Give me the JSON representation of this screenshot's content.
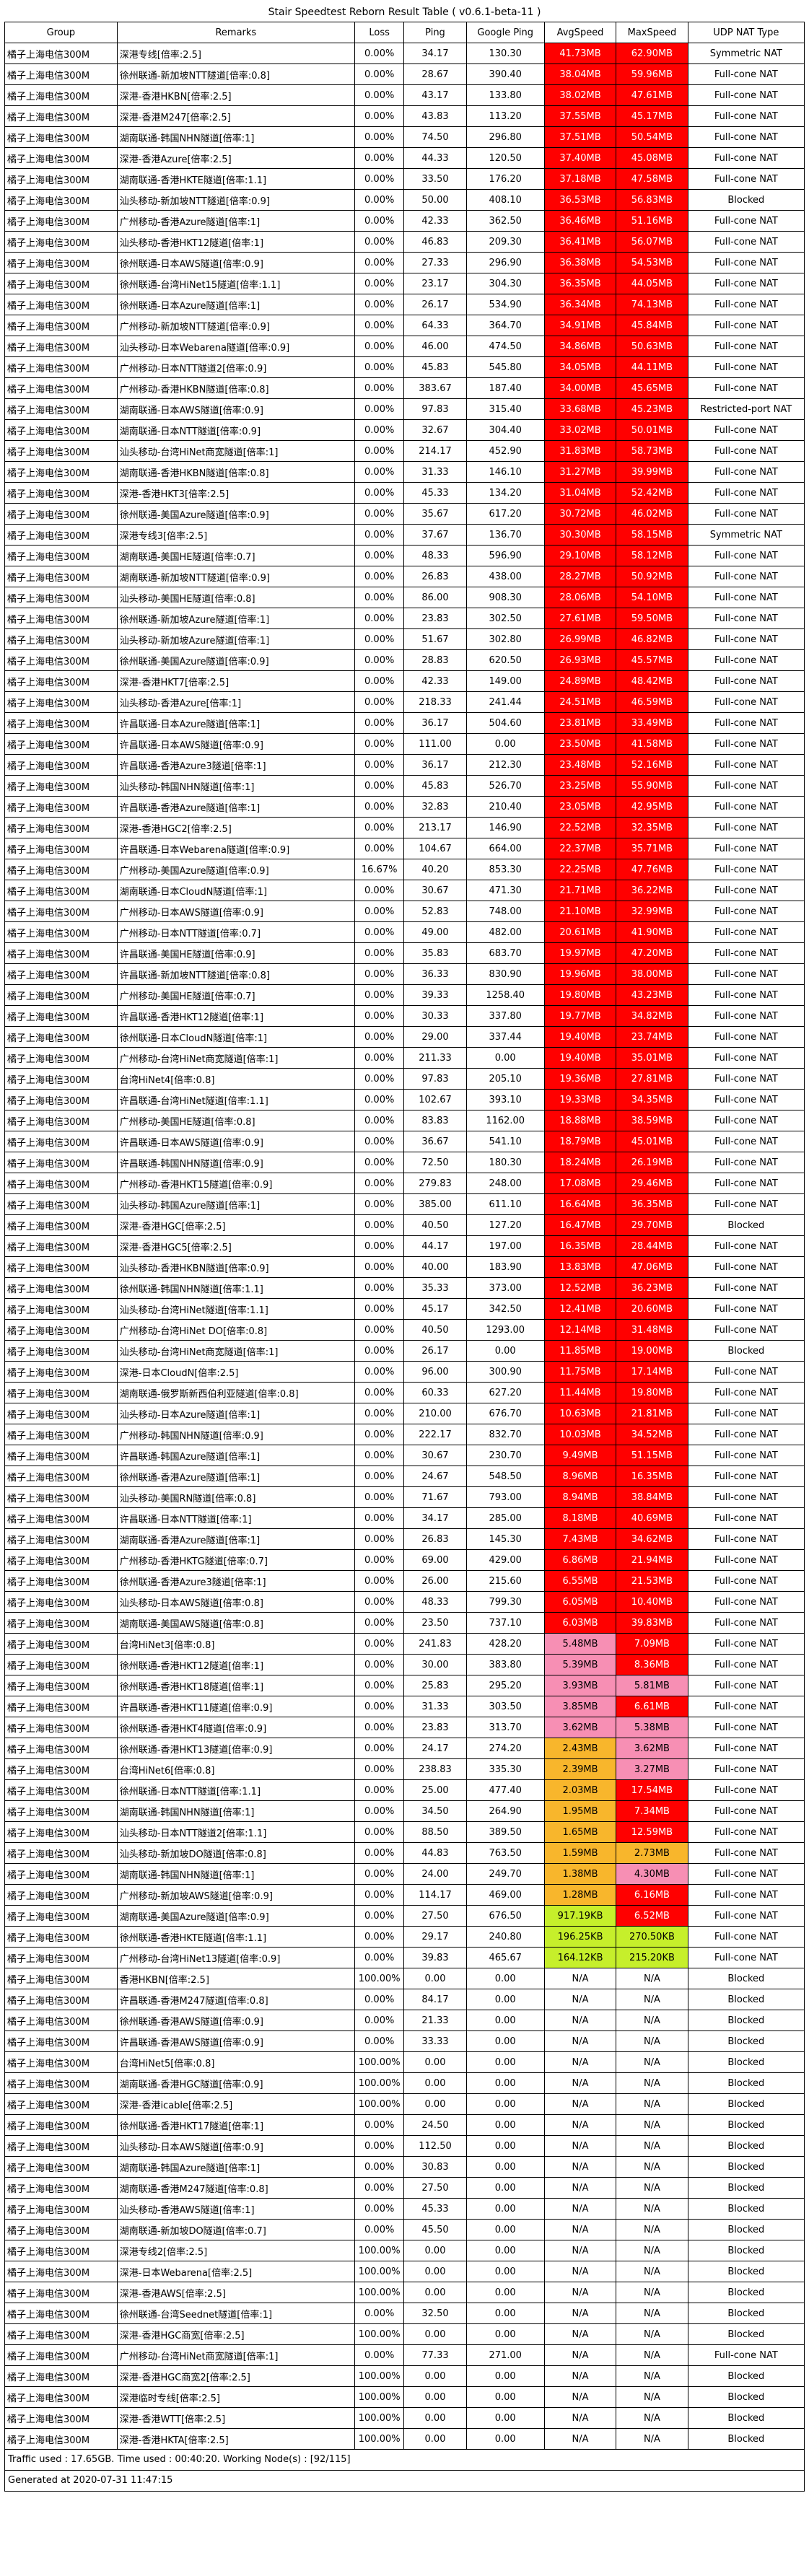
{
  "title": "Stair Speedtest Reborn Result Table ( v0.6.1-beta-11 )",
  "headers": [
    "Group",
    "Remarks",
    "Loss",
    "Ping",
    "Google Ping",
    "AvgSpeed",
    "MaxSpeed",
    "UDP NAT Type"
  ],
  "rows": [
    [
      "橘子上海电信300M",
      "深港专线[倍率:2.5]",
      "0.00%",
      "34.17",
      "130.30",
      "41.73MB",
      "62.90MB",
      "Symmetric NAT"
    ],
    [
      "橘子上海电信300M",
      "徐州联通-新加坡NTT隧道[倍率:0.8]",
      "0.00%",
      "28.67",
      "390.40",
      "38.04MB",
      "59.96MB",
      "Full-cone NAT"
    ],
    [
      "橘子上海电信300M",
      "深港-香港HKBN[倍率:2.5]",
      "0.00%",
      "43.17",
      "133.80",
      "38.02MB",
      "47.61MB",
      "Full-cone NAT"
    ],
    [
      "橘子上海电信300M",
      "深港-香港M247[倍率:2.5]",
      "0.00%",
      "43.83",
      "113.20",
      "37.55MB",
      "45.17MB",
      "Full-cone NAT"
    ],
    [
      "橘子上海电信300M",
      "湖南联通-韩国NHN隧道[倍率:1]",
      "0.00%",
      "74.50",
      "296.80",
      "37.51MB",
      "50.54MB",
      "Full-cone NAT"
    ],
    [
      "橘子上海电信300M",
      "深港-香港Azure[倍率:2.5]",
      "0.00%",
      "44.33",
      "120.50",
      "37.40MB",
      "45.08MB",
      "Full-cone NAT"
    ],
    [
      "橘子上海电信300M",
      "湖南联通-香港HKTE隧道[倍率:1.1]",
      "0.00%",
      "33.50",
      "176.20",
      "37.18MB",
      "47.58MB",
      "Full-cone NAT"
    ],
    [
      "橘子上海电信300M",
      "汕头移动-新加坡NTT隧道[倍率:0.9]",
      "0.00%",
      "50.00",
      "408.10",
      "36.53MB",
      "56.83MB",
      "Blocked"
    ],
    [
      "橘子上海电信300M",
      "广州移动-香港Azure隧道[倍率:1]",
      "0.00%",
      "42.33",
      "362.50",
      "36.46MB",
      "51.16MB",
      "Full-cone NAT"
    ],
    [
      "橘子上海电信300M",
      "汕头移动-香港HKT12隧道[倍率:1]",
      "0.00%",
      "46.83",
      "209.30",
      "36.41MB",
      "56.07MB",
      "Full-cone NAT"
    ],
    [
      "橘子上海电信300M",
      "徐州联通-日本AWS隧道[倍率:0.9]",
      "0.00%",
      "27.33",
      "296.90",
      "36.38MB",
      "54.53MB",
      "Full-cone NAT"
    ],
    [
      "橘子上海电信300M",
      "徐州联通-台湾HiNet15隧道[倍率:1.1]",
      "0.00%",
      "23.17",
      "304.30",
      "36.35MB",
      "44.05MB",
      "Full-cone NAT"
    ],
    [
      "橘子上海电信300M",
      "徐州联通-日本Azure隧道[倍率:1]",
      "0.00%",
      "26.17",
      "534.90",
      "36.34MB",
      "74.13MB",
      "Full-cone NAT"
    ],
    [
      "橘子上海电信300M",
      "广州移动-新加坡NTT隧道[倍率:0.9]",
      "0.00%",
      "64.33",
      "364.70",
      "34.91MB",
      "45.84MB",
      "Full-cone NAT"
    ],
    [
      "橘子上海电信300M",
      "汕头移动-日本Webarena隧道[倍率:0.9]",
      "0.00%",
      "46.00",
      "474.50",
      "34.86MB",
      "50.63MB",
      "Full-cone NAT"
    ],
    [
      "橘子上海电信300M",
      "广州移动-日本NTT隧道2[倍率:0.9]",
      "0.00%",
      "45.83",
      "545.80",
      "34.05MB",
      "44.11MB",
      "Full-cone NAT"
    ],
    [
      "橘子上海电信300M",
      "广州移动-香港HKBN隧道[倍率:0.8]",
      "0.00%",
      "383.67",
      "187.40",
      "34.00MB",
      "45.65MB",
      "Full-cone NAT"
    ],
    [
      "橘子上海电信300M",
      "湖南联通-日本AWS隧道[倍率:0.9]",
      "0.00%",
      "97.83",
      "315.40",
      "33.68MB",
      "45.23MB",
      "Restricted-port NAT"
    ],
    [
      "橘子上海电信300M",
      "湖南联通-日本NTT隧道[倍率:0.9]",
      "0.00%",
      "32.67",
      "304.40",
      "33.02MB",
      "50.01MB",
      "Full-cone NAT"
    ],
    [
      "橘子上海电信300M",
      "汕头移动-台湾HiNet商宽隧道[倍率:1]",
      "0.00%",
      "214.17",
      "452.90",
      "31.83MB",
      "58.73MB",
      "Full-cone NAT"
    ],
    [
      "橘子上海电信300M",
      "湖南联通-香港HKBN隧道[倍率:0.8]",
      "0.00%",
      "31.33",
      "146.10",
      "31.27MB",
      "39.99MB",
      "Full-cone NAT"
    ],
    [
      "橘子上海电信300M",
      "深港-香港HKT3[倍率:2.5]",
      "0.00%",
      "45.33",
      "134.20",
      "31.04MB",
      "52.42MB",
      "Full-cone NAT"
    ],
    [
      "橘子上海电信300M",
      "徐州联通-美国Azure隧道[倍率:0.9]",
      "0.00%",
      "35.67",
      "617.20",
      "30.72MB",
      "46.02MB",
      "Full-cone NAT"
    ],
    [
      "橘子上海电信300M",
      "深港专线3[倍率:2.5]",
      "0.00%",
      "37.67",
      "136.70",
      "30.30MB",
      "58.15MB",
      "Symmetric NAT"
    ],
    [
      "橘子上海电信300M",
      "湖南联通-美国HE隧道[倍率:0.7]",
      "0.00%",
      "48.33",
      "596.90",
      "29.10MB",
      "58.12MB",
      "Full-cone NAT"
    ],
    [
      "橘子上海电信300M",
      "湖南联通-新加坡NTT隧道[倍率:0.9]",
      "0.00%",
      "26.83",
      "438.00",
      "28.27MB",
      "50.92MB",
      "Full-cone NAT"
    ],
    [
      "橘子上海电信300M",
      "汕头移动-美国HE隧道[倍率:0.8]",
      "0.00%",
      "86.00",
      "908.30",
      "28.06MB",
      "54.10MB",
      "Full-cone NAT"
    ],
    [
      "橘子上海电信300M",
      "徐州联通-新加坡Azure隧道[倍率:1]",
      "0.00%",
      "23.83",
      "302.50",
      "27.61MB",
      "59.50MB",
      "Full-cone NAT"
    ],
    [
      "橘子上海电信300M",
      "汕头移动-新加坡Azure隧道[倍率:1]",
      "0.00%",
      "51.67",
      "302.80",
      "26.99MB",
      "46.82MB",
      "Full-cone NAT"
    ],
    [
      "橘子上海电信300M",
      "徐州联通-美国Azure隧道[倍率:0.9]",
      "0.00%",
      "28.83",
      "620.50",
      "26.93MB",
      "45.57MB",
      "Full-cone NAT"
    ],
    [
      "橘子上海电信300M",
      "深港-香港HKT7[倍率:2.5]",
      "0.00%",
      "42.33",
      "149.00",
      "24.89MB",
      "48.42MB",
      "Full-cone NAT"
    ],
    [
      "橘子上海电信300M",
      "汕头移动-香港Azure[倍率:1]",
      "0.00%",
      "218.33",
      "241.44",
      "24.51MB",
      "46.59MB",
      "Full-cone NAT"
    ],
    [
      "橘子上海电信300M",
      "许昌联通-日本Azure隧道[倍率:1]",
      "0.00%",
      "36.17",
      "504.60",
      "23.81MB",
      "33.49MB",
      "Full-cone NAT"
    ],
    [
      "橘子上海电信300M",
      "许昌联通-日本AWS隧道[倍率:0.9]",
      "0.00%",
      "111.00",
      "0.00",
      "23.50MB",
      "41.58MB",
      "Full-cone NAT"
    ],
    [
      "橘子上海电信300M",
      "许昌联通-香港Azure3隧道[倍率:1]",
      "0.00%",
      "36.17",
      "212.30",
      "23.48MB",
      "52.16MB",
      "Full-cone NAT"
    ],
    [
      "橘子上海电信300M",
      "汕头移动-韩国NHN隧道[倍率:1]",
      "0.00%",
      "45.83",
      "526.70",
      "23.25MB",
      "55.90MB",
      "Full-cone NAT"
    ],
    [
      "橘子上海电信300M",
      "许昌联通-香港Azure隧道[倍率:1]",
      "0.00%",
      "32.83",
      "210.40",
      "23.05MB",
      "42.95MB",
      "Full-cone NAT"
    ],
    [
      "橘子上海电信300M",
      "深港-香港HGC2[倍率:2.5]",
      "0.00%",
      "213.17",
      "146.90",
      "22.52MB",
      "32.35MB",
      "Full-cone NAT"
    ],
    [
      "橘子上海电信300M",
      "许昌联通-日本Webarena隧道[倍率:0.9]",
      "0.00%",
      "104.67",
      "664.00",
      "22.37MB",
      "35.71MB",
      "Full-cone NAT"
    ],
    [
      "橘子上海电信300M",
      "广州移动-美国Azure隧道[倍率:0.9]",
      "16.67%",
      "40.20",
      "853.30",
      "22.25MB",
      "47.76MB",
      "Full-cone NAT"
    ],
    [
      "橘子上海电信300M",
      "湖南联通-日本CloudN隧道[倍率:1]",
      "0.00%",
      "30.67",
      "471.30",
      "21.71MB",
      "36.22MB",
      "Full-cone NAT"
    ],
    [
      "橘子上海电信300M",
      "广州移动-日本AWS隧道[倍率:0.9]",
      "0.00%",
      "52.83",
      "748.00",
      "21.10MB",
      "32.99MB",
      "Full-cone NAT"
    ],
    [
      "橘子上海电信300M",
      "广州移动-日本NTT隧道[倍率:0.7]",
      "0.00%",
      "49.00",
      "482.00",
      "20.61MB",
      "41.90MB",
      "Full-cone NAT"
    ],
    [
      "橘子上海电信300M",
      "许昌联通-美国HE隧道[倍率:0.9]",
      "0.00%",
      "35.83",
      "683.70",
      "19.97MB",
      "47.20MB",
      "Full-cone NAT"
    ],
    [
      "橘子上海电信300M",
      "许昌联通-新加坡NTT隧道[倍率:0.8]",
      "0.00%",
      "36.33",
      "830.90",
      "19.96MB",
      "38.00MB",
      "Full-cone NAT"
    ],
    [
      "橘子上海电信300M",
      "广州移动-美国HE隧道[倍率:0.7]",
      "0.00%",
      "39.33",
      "1258.40",
      "19.80MB",
      "43.23MB",
      "Full-cone NAT"
    ],
    [
      "橘子上海电信300M",
      "许昌联通-香港HKT12隧道[倍率:1]",
      "0.00%",
      "30.33",
      "337.80",
      "19.77MB",
      "34.82MB",
      "Full-cone NAT"
    ],
    [
      "橘子上海电信300M",
      "徐州联通-日本CloudN隧道[倍率:1]",
      "0.00%",
      "29.00",
      "337.44",
      "19.40MB",
      "23.74MB",
      "Full-cone NAT"
    ],
    [
      "橘子上海电信300M",
      "广州移动-台湾HiNet商宽隧道[倍率:1]",
      "0.00%",
      "211.33",
      "0.00",
      "19.40MB",
      "35.01MB",
      "Full-cone NAT"
    ],
    [
      "橘子上海电信300M",
      "台湾HiNet4[倍率:0.8]",
      "0.00%",
      "97.83",
      "205.10",
      "19.36MB",
      "27.81MB",
      "Full-cone NAT"
    ],
    [
      "橘子上海电信300M",
      "许昌联通-台湾HiNet隧道[倍率:1.1]",
      "0.00%",
      "102.67",
      "393.10",
      "19.33MB",
      "34.35MB",
      "Full-cone NAT"
    ],
    [
      "橘子上海电信300M",
      "广州移动-美国HE隧道[倍率:0.8]",
      "0.00%",
      "83.83",
      "1162.00",
      "18.88MB",
      "38.59MB",
      "Full-cone NAT"
    ],
    [
      "橘子上海电信300M",
      "许昌联通-日本AWS隧道[倍率:0.9]",
      "0.00%",
      "36.67",
      "541.10",
      "18.79MB",
      "45.01MB",
      "Full-cone NAT"
    ],
    [
      "橘子上海电信300M",
      "许昌联通-韩国NHN隧道[倍率:0.9]",
      "0.00%",
      "72.50",
      "180.30",
      "18.24MB",
      "26.19MB",
      "Full-cone NAT"
    ],
    [
      "橘子上海电信300M",
      "广州移动-香港HKT15隧道[倍率:0.9]",
      "0.00%",
      "279.83",
      "248.00",
      "17.08MB",
      "29.46MB",
      "Full-cone NAT"
    ],
    [
      "橘子上海电信300M",
      "汕头移动-韩国Azure隧道[倍率:1]",
      "0.00%",
      "385.00",
      "611.10",
      "16.64MB",
      "36.35MB",
      "Full-cone NAT"
    ],
    [
      "橘子上海电信300M",
      "深港-香港HGC[倍率:2.5]",
      "0.00%",
      "40.50",
      "127.20",
      "16.47MB",
      "29.70MB",
      "Blocked"
    ],
    [
      "橘子上海电信300M",
      "深港-香港HGC5[倍率:2.5]",
      "0.00%",
      "44.17",
      "197.00",
      "16.35MB",
      "28.44MB",
      "Full-cone NAT"
    ],
    [
      "橘子上海电信300M",
      "汕头移动-香港HKBN隧道[倍率:0.9]",
      "0.00%",
      "40.00",
      "183.90",
      "13.83MB",
      "47.06MB",
      "Full-cone NAT"
    ],
    [
      "橘子上海电信300M",
      "徐州联通-韩国NHN隧道[倍率:1.1]",
      "0.00%",
      "35.33",
      "373.00",
      "12.52MB",
      "36.23MB",
      "Full-cone NAT"
    ],
    [
      "橘子上海电信300M",
      "汕头移动-台湾HiNet隧道[倍率:1.1]",
      "0.00%",
      "45.17",
      "342.50",
      "12.41MB",
      "20.60MB",
      "Full-cone NAT"
    ],
    [
      "橘子上海电信300M",
      "广州移动-台湾HiNet DO[倍率:0.8]",
      "0.00%",
      "40.50",
      "1293.00",
      "12.14MB",
      "31.48MB",
      "Full-cone NAT"
    ],
    [
      "橘子上海电信300M",
      "汕头移动-台湾HiNet商宽隧道[倍率:1]",
      "0.00%",
      "26.17",
      "0.00",
      "11.85MB",
      "19.00MB",
      "Blocked"
    ],
    [
      "橘子上海电信300M",
      "深港-日本CloudN[倍率:2.5]",
      "0.00%",
      "96.00",
      "300.90",
      "11.75MB",
      "17.14MB",
      "Full-cone NAT"
    ],
    [
      "橘子上海电信300M",
      "湖南联通-俄罗斯新西伯利亚隧道[倍率:0.8]",
      "0.00%",
      "60.33",
      "627.20",
      "11.44MB",
      "19.80MB",
      "Full-cone NAT"
    ],
    [
      "橘子上海电信300M",
      "汕头移动-日本Azure隧道[倍率:1]",
      "0.00%",
      "210.00",
      "676.70",
      "10.63MB",
      "21.81MB",
      "Full-cone NAT"
    ],
    [
      "橘子上海电信300M",
      "广州移动-韩国NHN隧道[倍率:0.9]",
      "0.00%",
      "222.17",
      "832.70",
      "10.03MB",
      "34.52MB",
      "Full-cone NAT"
    ],
    [
      "橘子上海电信300M",
      "许昌联通-韩国Azure隧道[倍率:1]",
      "0.00%",
      "30.67",
      "230.70",
      "9.49MB",
      "51.15MB",
      "Full-cone NAT"
    ],
    [
      "橘子上海电信300M",
      "徐州联通-香港Azure隧道[倍率:1]",
      "0.00%",
      "24.67",
      "548.50",
      "8.96MB",
      "16.35MB",
      "Full-cone NAT"
    ],
    [
      "橘子上海电信300M",
      "汕头移动-美国RN隧道[倍率:0.8]",
      "0.00%",
      "71.67",
      "793.00",
      "8.94MB",
      "38.84MB",
      "Full-cone NAT"
    ],
    [
      "橘子上海电信300M",
      "许昌联通-日本NTT隧道[倍率:1]",
      "0.00%",
      "34.17",
      "285.00",
      "8.18MB",
      "40.69MB",
      "Full-cone NAT"
    ],
    [
      "橘子上海电信300M",
      "湖南联通-香港Azure隧道[倍率:1]",
      "0.00%",
      "26.83",
      "145.30",
      "7.43MB",
      "34.62MB",
      "Full-cone NAT"
    ],
    [
      "橘子上海电信300M",
      "广州移动-香港HKTG隧道[倍率:0.7]",
      "0.00%",
      "69.00",
      "429.00",
      "6.86MB",
      "21.94MB",
      "Full-cone NAT"
    ],
    [
      "橘子上海电信300M",
      "徐州联通-香港Azure3隧道[倍率:1]",
      "0.00%",
      "26.00",
      "215.60",
      "6.55MB",
      "21.53MB",
      "Full-cone NAT"
    ],
    [
      "橘子上海电信300M",
      "汕头移动-日本AWS隧道[倍率:0.8]",
      "0.00%",
      "48.33",
      "799.30",
      "6.05MB",
      "10.40MB",
      "Full-cone NAT"
    ],
    [
      "橘子上海电信300M",
      "湖南联通-美国AWS隧道[倍率:0.8]",
      "0.00%",
      "23.50",
      "737.10",
      "6.03MB",
      "39.83MB",
      "Full-cone NAT"
    ],
    [
      "橘子上海电信300M",
      "台湾HiNet3[倍率:0.8]",
      "0.00%",
      "241.83",
      "428.20",
      "5.48MB",
      "7.09MB",
      "Full-cone NAT"
    ],
    [
      "橘子上海电信300M",
      "徐州联通-香港HKT12隧道[倍率:1]",
      "0.00%",
      "30.00",
      "383.80",
      "5.39MB",
      "8.36MB",
      "Full-cone NAT"
    ],
    [
      "橘子上海电信300M",
      "徐州联通-香港HKT18隧道[倍率:1]",
      "0.00%",
      "25.83",
      "295.20",
      "3.93MB",
      "5.81MB",
      "Full-cone NAT"
    ],
    [
      "橘子上海电信300M",
      "许昌联通-香港HKT11隧道[倍率:0.9]",
      "0.00%",
      "31.33",
      "303.50",
      "3.85MB",
      "6.61MB",
      "Full-cone NAT"
    ],
    [
      "橘子上海电信300M",
      "徐州联通-香港HKT4隧道[倍率:0.9]",
      "0.00%",
      "23.83",
      "313.70",
      "3.62MB",
      "5.38MB",
      "Full-cone NAT"
    ],
    [
      "橘子上海电信300M",
      "徐州联通-香港HKT13隧道[倍率:0.9]",
      "0.00%",
      "24.17",
      "274.20",
      "2.43MB",
      "3.62MB",
      "Full-cone NAT"
    ],
    [
      "橘子上海电信300M",
      "台湾HiNet6[倍率:0.8]",
      "0.00%",
      "238.83",
      "335.30",
      "2.39MB",
      "3.27MB",
      "Full-cone NAT"
    ],
    [
      "橘子上海电信300M",
      "徐州联通-日本NTT隧道[倍率:1.1]",
      "0.00%",
      "25.00",
      "477.40",
      "2.03MB",
      "17.54MB",
      "Full-cone NAT"
    ],
    [
      "橘子上海电信300M",
      "湖南联通-韩国NHN隧道[倍率:1]",
      "0.00%",
      "34.50",
      "264.90",
      "1.95MB",
      "7.34MB",
      "Full-cone NAT"
    ],
    [
      "橘子上海电信300M",
      "汕头移动-日本NTT隧道2[倍率:1.1]",
      "0.00%",
      "88.50",
      "389.50",
      "1.65MB",
      "12.59MB",
      "Full-cone NAT"
    ],
    [
      "橘子上海电信300M",
      "汕头移动-新加坡DO隧道[倍率:0.8]",
      "0.00%",
      "44.83",
      "763.50",
      "1.59MB",
      "2.73MB",
      "Full-cone NAT"
    ],
    [
      "橘子上海电信300M",
      "湖南联通-韩国NHN隧道[倍率:1]",
      "0.00%",
      "24.00",
      "249.70",
      "1.38MB",
      "4.30MB",
      "Full-cone NAT"
    ],
    [
      "橘子上海电信300M",
      "广州移动-新加坡AWS隧道[倍率:0.9]",
      "0.00%",
      "114.17",
      "469.00",
      "1.28MB",
      "6.16MB",
      "Full-cone NAT"
    ],
    [
      "橘子上海电信300M",
      "湖南联通-美国Azure隧道[倍率:0.9]",
      "0.00%",
      "27.50",
      "676.50",
      "917.19KB",
      "6.52MB",
      "Full-cone NAT"
    ],
    [
      "橘子上海电信300M",
      "徐州联通-香港HKTE隧道[倍率:1.1]",
      "0.00%",
      "29.17",
      "240.80",
      "196.25KB",
      "270.50KB",
      "Full-cone NAT"
    ],
    [
      "橘子上海电信300M",
      "广州移动-台湾HiNet13隧道[倍率:0.9]",
      "0.00%",
      "39.83",
      "465.67",
      "164.12KB",
      "215.20KB",
      "Full-cone NAT"
    ],
    [
      "橘子上海电信300M",
      "香港HKBN[倍率:2.5]",
      "100.00%",
      "0.00",
      "0.00",
      "N/A",
      "N/A",
      "Blocked"
    ],
    [
      "橘子上海电信300M",
      "许昌联通-香港M247隧道[倍率:0.8]",
      "0.00%",
      "84.17",
      "0.00",
      "N/A",
      "N/A",
      "Blocked"
    ],
    [
      "橘子上海电信300M",
      "徐州联通-香港AWS隧道[倍率:0.9]",
      "0.00%",
      "21.33",
      "0.00",
      "N/A",
      "N/A",
      "Blocked"
    ],
    [
      "橘子上海电信300M",
      "许昌联通-香港AWS隧道[倍率:0.9]",
      "0.00%",
      "33.33",
      "0.00",
      "N/A",
      "N/A",
      "Blocked"
    ],
    [
      "橘子上海电信300M",
      "台湾HiNet5[倍率:0.8]",
      "100.00%",
      "0.00",
      "0.00",
      "N/A",
      "N/A",
      "Blocked"
    ],
    [
      "橘子上海电信300M",
      "湖南联通-香港HGC隧道[倍率:0.9]",
      "100.00%",
      "0.00",
      "0.00",
      "N/A",
      "N/A",
      "Blocked"
    ],
    [
      "橘子上海电信300M",
      "深港-香港icable[倍率:2.5]",
      "100.00%",
      "0.00",
      "0.00",
      "N/A",
      "N/A",
      "Blocked"
    ],
    [
      "橘子上海电信300M",
      "徐州联通-香港HKT17隧道[倍率:1]",
      "0.00%",
      "24.50",
      "0.00",
      "N/A",
      "N/A",
      "Blocked"
    ],
    [
      "橘子上海电信300M",
      "汕头移动-日本AWS隧道[倍率:0.9]",
      "0.00%",
      "112.50",
      "0.00",
      "N/A",
      "N/A",
      "Blocked"
    ],
    [
      "橘子上海电信300M",
      "湖南联通-韩国Azure隧道[倍率:1]",
      "0.00%",
      "30.83",
      "0.00",
      "N/A",
      "N/A",
      "Blocked"
    ],
    [
      "橘子上海电信300M",
      "湖南联通-香港M247隧道[倍率:0.8]",
      "0.00%",
      "27.50",
      "0.00",
      "N/A",
      "N/A",
      "Blocked"
    ],
    [
      "橘子上海电信300M",
      "汕头移动-香港AWS隧道[倍率:1]",
      "0.00%",
      "45.33",
      "0.00",
      "N/A",
      "N/A",
      "Blocked"
    ],
    [
      "橘子上海电信300M",
      "湖南联通-新加坡DO隧道[倍率:0.7]",
      "0.00%",
      "45.50",
      "0.00",
      "N/A",
      "N/A",
      "Blocked"
    ],
    [
      "橘子上海电信300M",
      "深港专线2[倍率:2.5]",
      "100.00%",
      "0.00",
      "0.00",
      "N/A",
      "N/A",
      "Blocked"
    ],
    [
      "橘子上海电信300M",
      "深港-日本Webarena[倍率:2.5]",
      "100.00%",
      "0.00",
      "0.00",
      "N/A",
      "N/A",
      "Blocked"
    ],
    [
      "橘子上海电信300M",
      "深港-香港AWS[倍率:2.5]",
      "100.00%",
      "0.00",
      "0.00",
      "N/A",
      "N/A",
      "Blocked"
    ],
    [
      "橘子上海电信300M",
      "徐州联通-台湾Seednet隧道[倍率:1]",
      "0.00%",
      "32.50",
      "0.00",
      "N/A",
      "N/A",
      "Blocked"
    ],
    [
      "橘子上海电信300M",
      "深港-香港HGC商宽[倍率:2.5]",
      "100.00%",
      "0.00",
      "0.00",
      "N/A",
      "N/A",
      "Blocked"
    ],
    [
      "橘子上海电信300M",
      "广州移动-台湾HiNet商宽隧道[倍率:1]",
      "0.00%",
      "77.33",
      "271.00",
      "N/A",
      "N/A",
      "Full-cone NAT"
    ],
    [
      "橘子上海电信300M",
      "深港-香港HGC商宽2[倍率:2.5]",
      "100.00%",
      "0.00",
      "0.00",
      "N/A",
      "N/A",
      "Blocked"
    ],
    [
      "橘子上海电信300M",
      "深港临时专线[倍率:2.5]",
      "100.00%",
      "0.00",
      "0.00",
      "N/A",
      "N/A",
      "Blocked"
    ],
    [
      "橘子上海电信300M",
      "深港-香港WTT[倍率:2.5]",
      "100.00%",
      "0.00",
      "0.00",
      "N/A",
      "N/A",
      "Blocked"
    ],
    [
      "橘子上海电信300M",
      "深港-香港HKTA[倍率:2.5]",
      "100.00%",
      "0.00",
      "0.00",
      "N/A",
      "N/A",
      "Blocked"
    ]
  ],
  "footer": {
    "traffic": "Traffic used : 17.65GB. Time used : 00:40:20. Working Node(s) : [92/115]",
    "generated": "Generated at 2020-07-31 11:47:15"
  },
  "colors": {
    "border": "#000000",
    "text": "#000000",
    "speed_text": "#ffffff"
  }
}
